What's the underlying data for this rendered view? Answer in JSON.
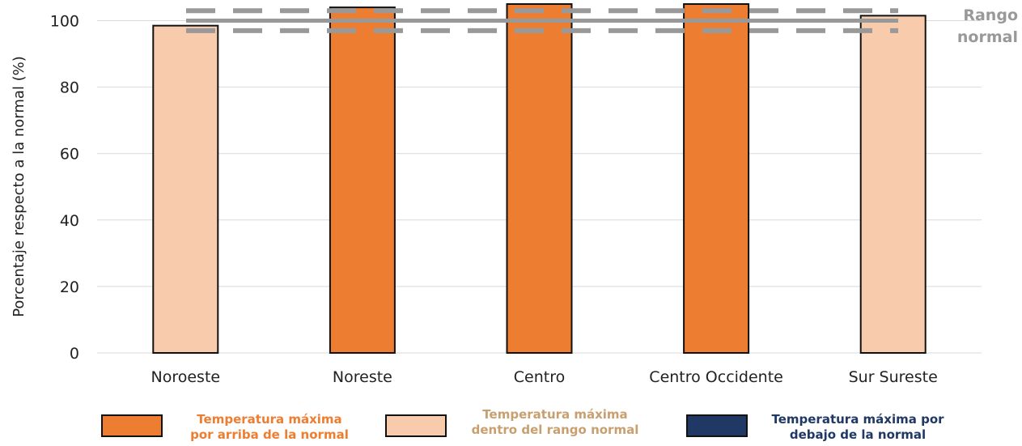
{
  "chart_data": {
    "type": "bar",
    "title": "",
    "ylabel": "Porcentaje respecto a la normal (%)",
    "xlabel": "",
    "ylim": [
      0,
      105
    ],
    "yticks": [
      0,
      20,
      40,
      60,
      80,
      100
    ],
    "grid": true,
    "categories": [
      "Noroeste",
      "Noreste",
      "Centro",
      "Centro Occidente",
      "Sur Sureste"
    ],
    "values": [
      98.5,
      104,
      105,
      105,
      101.5
    ],
    "bar_status": [
      "dentro",
      "arriba",
      "arriba",
      "arriba",
      "dentro"
    ],
    "normal_range": {
      "label_line1": "Rango",
      "label_line2": "normal",
      "center": 100,
      "upper": 103,
      "lower": 97
    }
  },
  "colors": {
    "arriba": "#ed7d31",
    "dentro": "#f8cbad",
    "debajo": "#1f3864",
    "arriba_text": "#ed7d31",
    "dentro_text": "#c8a070",
    "debajo_text": "#1f3864",
    "range_line": "#999999",
    "grid": "#d9d9d9"
  },
  "legend": [
    {
      "key": "arriba",
      "line1": "Temperatura máxima",
      "line2": "por arriba de la normal"
    },
    {
      "key": "dentro",
      "line1": "Temperatura máxima",
      "line2": "dentro del rango normal"
    },
    {
      "key": "debajo",
      "line1": "Temperatura máxima por",
      "line2": "debajo de la normal"
    }
  ]
}
